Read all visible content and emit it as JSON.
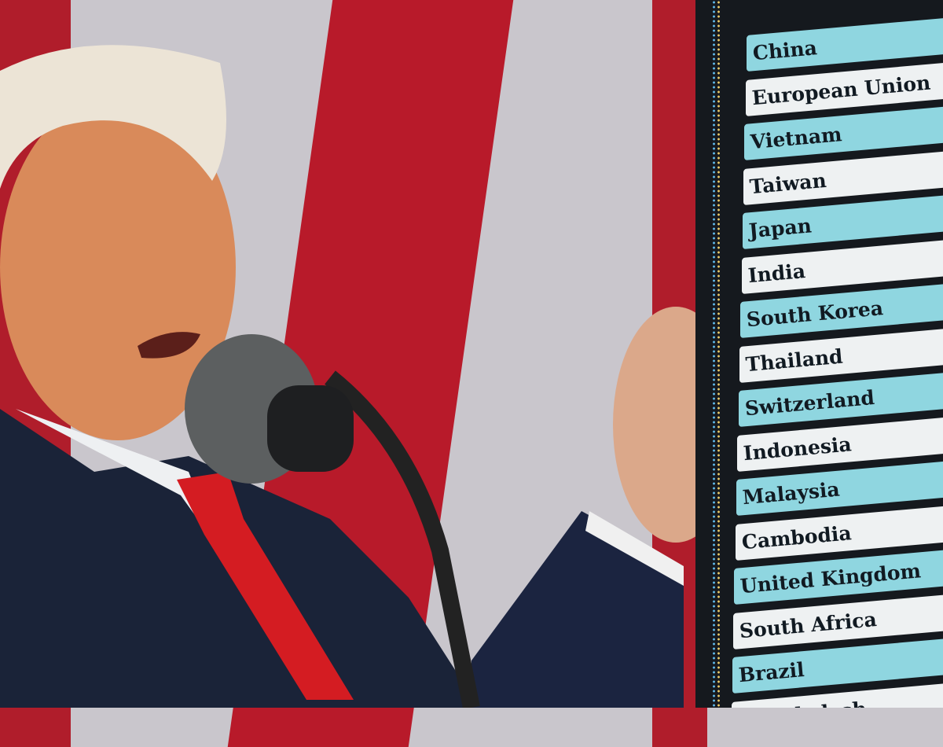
{
  "colors": {
    "flag_red": "#b81a2a",
    "flag_white": "#d7d4da",
    "board": "#15191e",
    "row_cyan": "#8fd6e0",
    "row_white": "#eef1f2",
    "suit": "#1a2338",
    "tie": "#d41c22"
  },
  "board": {
    "countries": [
      "China",
      "European Union",
      "Vietnam",
      "Taiwan",
      "Japan",
      "India",
      "South Korea",
      "Thailand",
      "Switzerland",
      "Indonesia",
      "Malaysia",
      "Cambodia",
      "United Kingdom",
      "South Africa",
      "Brazil",
      "Bangladesh"
    ]
  }
}
